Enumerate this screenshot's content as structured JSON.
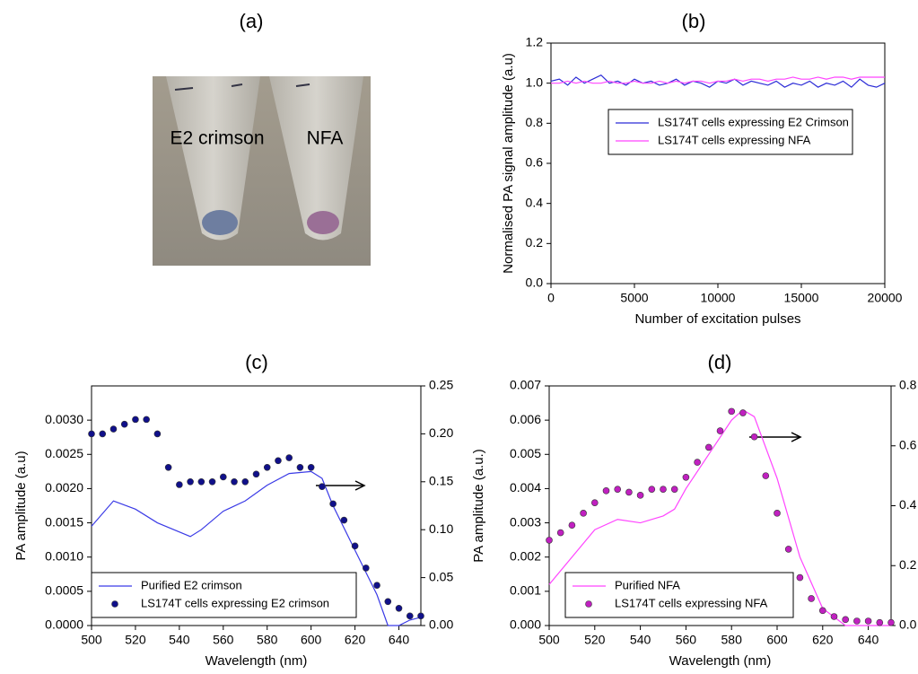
{
  "image": {
    "title": "(a)",
    "labels": [
      "E2 crimson",
      "NFA"
    ]
  },
  "chart_data": [
    {
      "type": "line",
      "title": "(b)",
      "xlabel": "Number of excitation pulses",
      "ylabel": "Normalised PA signal amplitude (a.u)",
      "xlim": [
        0,
        20000
      ],
      "xticks": [
        0,
        5000,
        10000,
        15000,
        20000
      ],
      "ylim": [
        0,
        1.2
      ],
      "yticks": [
        {
          "value": 0,
          "label": "0.0"
        },
        0.2,
        0.4,
        0.6,
        0.8,
        {
          "value": 1,
          "label": "1.0"
        },
        1.2
      ],
      "series": [
        {
          "name": "LS174T cells expressing E2 Crimson",
          "color": "#2b2bd6",
          "type": "line",
          "x": [
            0,
            500,
            1000,
            1500,
            2000,
            2500,
            3000,
            3500,
            4000,
            4500,
            5000,
            5500,
            6000,
            6500,
            7000,
            7500,
            8000,
            8500,
            9000,
            9500,
            10000,
            10500,
            11000,
            11500,
            12000,
            12500,
            13000,
            13500,
            14000,
            14500,
            15000,
            15500,
            16000,
            16500,
            17000,
            17500,
            18000,
            18500,
            19000,
            19500,
            20000
          ],
          "values": [
            1.01,
            1.02,
            0.99,
            1.03,
            1.0,
            1.02,
            1.04,
            1.0,
            1.01,
            0.99,
            1.02,
            1.0,
            1.01,
            0.99,
            1.0,
            1.02,
            0.99,
            1.01,
            1.0,
            0.98,
            1.01,
            1.0,
            1.02,
            0.99,
            1.01,
            1.0,
            0.99,
            1.01,
            0.98,
            1.0,
            0.99,
            1.01,
            0.98,
            1.0,
            0.99,
            1.01,
            0.98,
            1.02,
            0.99,
            0.98,
            1.0
          ]
        },
        {
          "name": "LS174T cells expressing NFA",
          "color": "#ff44ff",
          "type": "line",
          "x": [
            0,
            500,
            1000,
            1500,
            2000,
            2500,
            3000,
            3500,
            4000,
            4500,
            5000,
            5500,
            6000,
            6500,
            7000,
            7500,
            8000,
            8500,
            9000,
            9500,
            10000,
            10500,
            11000,
            11500,
            12000,
            12500,
            13000,
            13500,
            14000,
            14500,
            15000,
            15500,
            16000,
            16500,
            17000,
            17500,
            18000,
            18500,
            19000,
            19500,
            20000
          ],
          "values": [
            1.0,
            1.0,
            1.01,
            1.0,
            1.01,
            1.0,
            1.0,
            1.01,
            1.0,
            1.0,
            1.01,
            1.0,
            1.0,
            1.01,
            1.0,
            1.01,
            1.0,
            1.01,
            1.01,
            1.0,
            1.01,
            1.01,
            1.02,
            1.01,
            1.02,
            1.02,
            1.01,
            1.02,
            1.02,
            1.03,
            1.02,
            1.02,
            1.03,
            1.02,
            1.03,
            1.03,
            1.02,
            1.03,
            1.03,
            1.03,
            1.03
          ]
        }
      ]
    },
    {
      "type": "combo",
      "title": "(c)",
      "xlabel": "Wavelength (nm)",
      "ylabel": "PA amplitude (a.u)",
      "xlim": [
        500,
        650
      ],
      "xticks": [
        500,
        520,
        540,
        560,
        580,
        600,
        620,
        640
      ],
      "ylim": [
        0,
        0.0035
      ],
      "yticks": [
        {
          "value": 0,
          "label": "0.0000"
        },
        0.0005,
        {
          "value": 0.001,
          "label": "0.0010"
        },
        0.0015,
        {
          "value": 0.002,
          "label": "0.0020"
        },
        0.0025,
        {
          "value": 0.003,
          "label": "0.0030"
        }
      ],
      "y2lim": [
        0,
        0.25
      ],
      "y2ticks": [
        {
          "value": 0,
          "label": "0.00"
        },
        0.05,
        {
          "value": 0.1,
          "label": "0.10"
        },
        0.15,
        {
          "value": 0.2,
          "label": "0.20"
        },
        0.25
      ],
      "series": [
        {
          "name": "Purified E2 crimson",
          "color": "#3a3ae6",
          "type": "line",
          "x": [
            500,
            510,
            520,
            530,
            545,
            550,
            560,
            570,
            580,
            590,
            600,
            605,
            610,
            620,
            630,
            635,
            640,
            645,
            650
          ],
          "values": [
            0.00145,
            0.00182,
            0.0017,
            0.0015,
            0.0013,
            0.0014,
            0.00167,
            0.00182,
            0.00205,
            0.00222,
            0.00225,
            0.00215,
            0.00175,
            0.0011,
            0.00045,
            0,
            0,
            8e-05,
            0.00012
          ]
        },
        {
          "name": "LS174T cells expressing E2 crimson",
          "color": "#10108a",
          "type": "scatter",
          "axis": "y2",
          "x": [
            500,
            505,
            510,
            515,
            520,
            525,
            530,
            535,
            540,
            545,
            550,
            555,
            560,
            565,
            570,
            575,
            580,
            585,
            590,
            595,
            600,
            605,
            610,
            615,
            620,
            625,
            630,
            635,
            640,
            645,
            650
          ],
          "values": [
            0.2,
            0.2,
            0.205,
            0.21,
            0.215,
            0.215,
            0.2,
            0.165,
            0.147,
            0.15,
            0.15,
            0.15,
            0.155,
            0.15,
            0.15,
            0.158,
            0.165,
            0.172,
            0.175,
            0.165,
            0.165,
            0.145,
            0.127,
            0.11,
            0.083,
            0.06,
            0.042,
            0.025,
            0.018,
            0.01,
            0.01
          ]
        }
      ]
    },
    {
      "type": "combo",
      "title": "(d)",
      "xlabel": "Wavelength (nm)",
      "ylabel": "PA amplitude (a.u.)",
      "xlim": [
        500,
        650
      ],
      "xticks": [
        500,
        520,
        540,
        560,
        580,
        600,
        620,
        640
      ],
      "ylim": [
        0,
        0.007
      ],
      "yticks": [
        {
          "value": 0,
          "label": "0.000"
        },
        0.001,
        0.002,
        0.003,
        0.004,
        0.005,
        0.006,
        0.007
      ],
      "y2lim": [
        0,
        0.8
      ],
      "y2ticks": [
        {
          "value": 0,
          "label": "0.0"
        },
        0.2,
        0.4,
        0.6,
        0.8
      ],
      "series": [
        {
          "name": "Purified NFA",
          "color": "#ff44ff",
          "type": "line",
          "x": [
            500,
            510,
            520,
            530,
            540,
            550,
            555,
            560,
            570,
            580,
            585,
            590,
            600,
            610,
            620,
            630,
            650
          ],
          "values": [
            0.0012,
            0.002,
            0.0028,
            0.0031,
            0.003,
            0.0032,
            0.0034,
            0.004,
            0.005,
            0.006,
            0.0063,
            0.0061,
            0.0043,
            0.002,
            0.0005,
            0,
            0
          ]
        },
        {
          "name": "LS174T cells expressing NFA",
          "color": "#c020c0",
          "type": "scatter",
          "axis": "y2",
          "x": [
            500,
            505,
            510,
            515,
            520,
            525,
            530,
            535,
            540,
            545,
            550,
            555,
            560,
            565,
            570,
            575,
            580,
            585,
            590,
            595,
            600,
            605,
            610,
            615,
            620,
            625,
            630,
            635,
            640,
            645,
            650
          ],
          "values": [
            0.285,
            0.31,
            0.335,
            0.375,
            0.41,
            0.45,
            0.455,
            0.445,
            0.435,
            0.455,
            0.455,
            0.455,
            0.495,
            0.545,
            0.595,
            0.65,
            0.715,
            0.71,
            0.63,
            0.5,
            0.375,
            0.255,
            0.16,
            0.09,
            0.05,
            0.03,
            0.02,
            0.015,
            0.015,
            0.01,
            0.01
          ]
        }
      ]
    }
  ]
}
